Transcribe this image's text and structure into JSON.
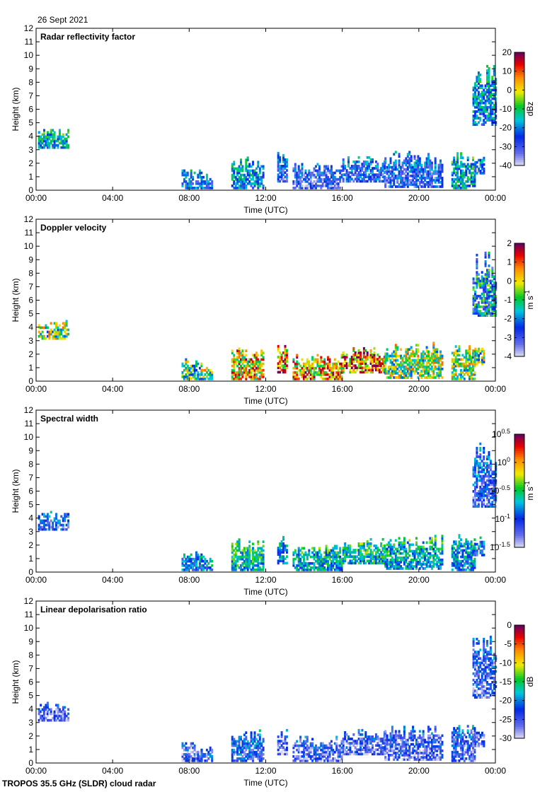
{
  "date": "26 Sept 2021",
  "footer": "TROPOS 35.5 GHz (SLDR) cloud radar",
  "chart_data": {
    "type": "heatmap",
    "x_tick_labels": [
      "00:00",
      "04:00",
      "08:00",
      "12:00",
      "16:00",
      "20:00",
      "00:00"
    ],
    "x_range_hours": [
      0,
      24
    ],
    "y_range_km": [
      0,
      12
    ],
    "y_tick_labels": [
      "0",
      "1",
      "2",
      "3",
      "4",
      "5",
      "6",
      "7",
      "8",
      "9",
      "10",
      "11",
      "12"
    ],
    "xlabel": "Time (UTC)",
    "ylabel": "Height (km)",
    "panels": [
      {
        "id": "reflectivity",
        "title": "Radar reflectivity factor",
        "units": "dBz",
        "colorbar_ticks": [
          "20",
          "10",
          "0",
          "-10",
          "-20",
          "-30",
          "-40"
        ],
        "range": [
          -40,
          20
        ]
      },
      {
        "id": "velocity",
        "title": "Doppler velocity",
        "units_base": "m s",
        "units_exp": "-1",
        "colorbar_ticks": [
          "2",
          "1",
          "0",
          "-1",
          "-2",
          "-3",
          "-4"
        ],
        "range": [
          -4,
          2
        ]
      },
      {
        "id": "width",
        "title": "Spectral width",
        "units_base": "m s",
        "units_exp": "-1",
        "colorbar_ticks": [
          {
            "base": "10",
            "exp": "0.5"
          },
          {
            "base": "10",
            "exp": "0"
          },
          {
            "base": "10",
            "exp": "-0.5"
          },
          {
            "base": "10",
            "exp": "-1"
          },
          {
            "base": "10",
            "exp": "-1.5"
          }
        ],
        "range": [
          -1.5,
          0.5
        ]
      },
      {
        "id": "ldr",
        "title": "Linear depolarisation ratio",
        "units": "dB",
        "colorbar_ticks": [
          "0",
          "-5",
          "-10",
          "-15",
          "-20",
          "-25",
          "-30"
        ],
        "range": [
          -30,
          0
        ]
      }
    ],
    "cloud_regions": [
      {
        "t0": 0.1,
        "t1": 1.7,
        "h0": 3.1,
        "h1": 4.5,
        "v": [
          0.35,
          0.55,
          0.2,
          0.1
        ]
      },
      {
        "t0": 7.6,
        "t1": 8.6,
        "h0": 0.1,
        "h1": 1.6,
        "v": [
          0.25,
          0.5,
          0.25,
          0.12
        ]
      },
      {
        "t0": 8.6,
        "t1": 9.2,
        "h0": 0.1,
        "h1": 1.1,
        "v": [
          0.25,
          0.55,
          0.3,
          0.15
        ]
      },
      {
        "t0": 10.2,
        "t1": 11.9,
        "h0": 0.1,
        "h1": 2.5,
        "v": [
          0.3,
          0.7,
          0.4,
          0.2
        ]
      },
      {
        "t0": 12.6,
        "t1": 13.1,
        "h0": 0.6,
        "h1": 2.7,
        "v": [
          0.2,
          0.75,
          0.3,
          0.1
        ]
      },
      {
        "t0": 13.4,
        "t1": 16.0,
        "h0": 0.1,
        "h1": 2.0,
        "v": [
          0.15,
          0.72,
          0.35,
          0.12
        ]
      },
      {
        "t0": 16.0,
        "t1": 18.2,
        "h0": 0.6,
        "h1": 2.5,
        "v": [
          0.2,
          0.78,
          0.4,
          0.12
        ]
      },
      {
        "t0": 18.2,
        "t1": 21.2,
        "h0": 0.2,
        "h1": 2.8,
        "v": [
          0.18,
          0.55,
          0.35,
          0.12
        ]
      },
      {
        "t0": 21.7,
        "t1": 22.9,
        "h0": 0.1,
        "h1": 2.9,
        "v": [
          0.35,
          0.55,
          0.3,
          0.15
        ]
      },
      {
        "t0": 22.9,
        "t1": 23.4,
        "h0": 1.2,
        "h1": 2.6,
        "v": [
          0.25,
          0.5,
          0.25,
          0.12
        ]
      },
      {
        "t0": 22.8,
        "t1": 24.0,
        "h0": 4.8,
        "h1": 9.6,
        "v": [
          0.3,
          0.35,
          0.18,
          0.15
        ]
      }
    ]
  }
}
